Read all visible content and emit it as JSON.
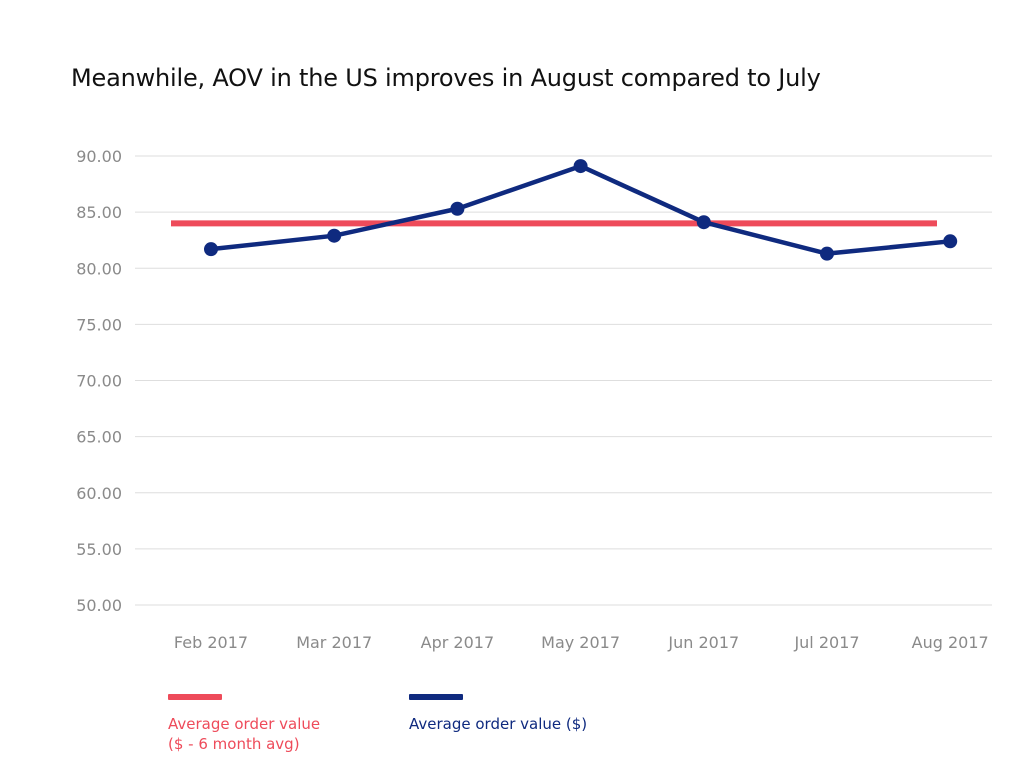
{
  "chart_data": {
    "type": "line",
    "title": "Meanwhile, AOV in the US improves in August compared to July",
    "categories": [
      "Feb 2017",
      "Mar 2017",
      "Apr 2017",
      "May 2017",
      "Jun 2017",
      "Jul 2017",
      "Aug 2017"
    ],
    "ylim": [
      50,
      90
    ],
    "yticks": [
      "90.00",
      "85.00",
      "80.00",
      "75.00",
      "70.00",
      "65.00",
      "60.00",
      "55.00",
      "50.00"
    ],
    "grid": true,
    "legend_position": "bottom-left",
    "series": [
      {
        "name": "Average order value\n($ - 6 month avg)",
        "color": "#ee4b5a",
        "markers": false,
        "values": [
          84.0,
          84.0,
          84.0,
          84.0,
          84.0,
          84.0,
          84.0
        ]
      },
      {
        "name": "Average order value ($)",
        "color": "#0f2a7f",
        "markers": true,
        "values": [
          81.7,
          82.9,
          85.3,
          89.1,
          84.1,
          81.3,
          82.4
        ]
      }
    ]
  }
}
